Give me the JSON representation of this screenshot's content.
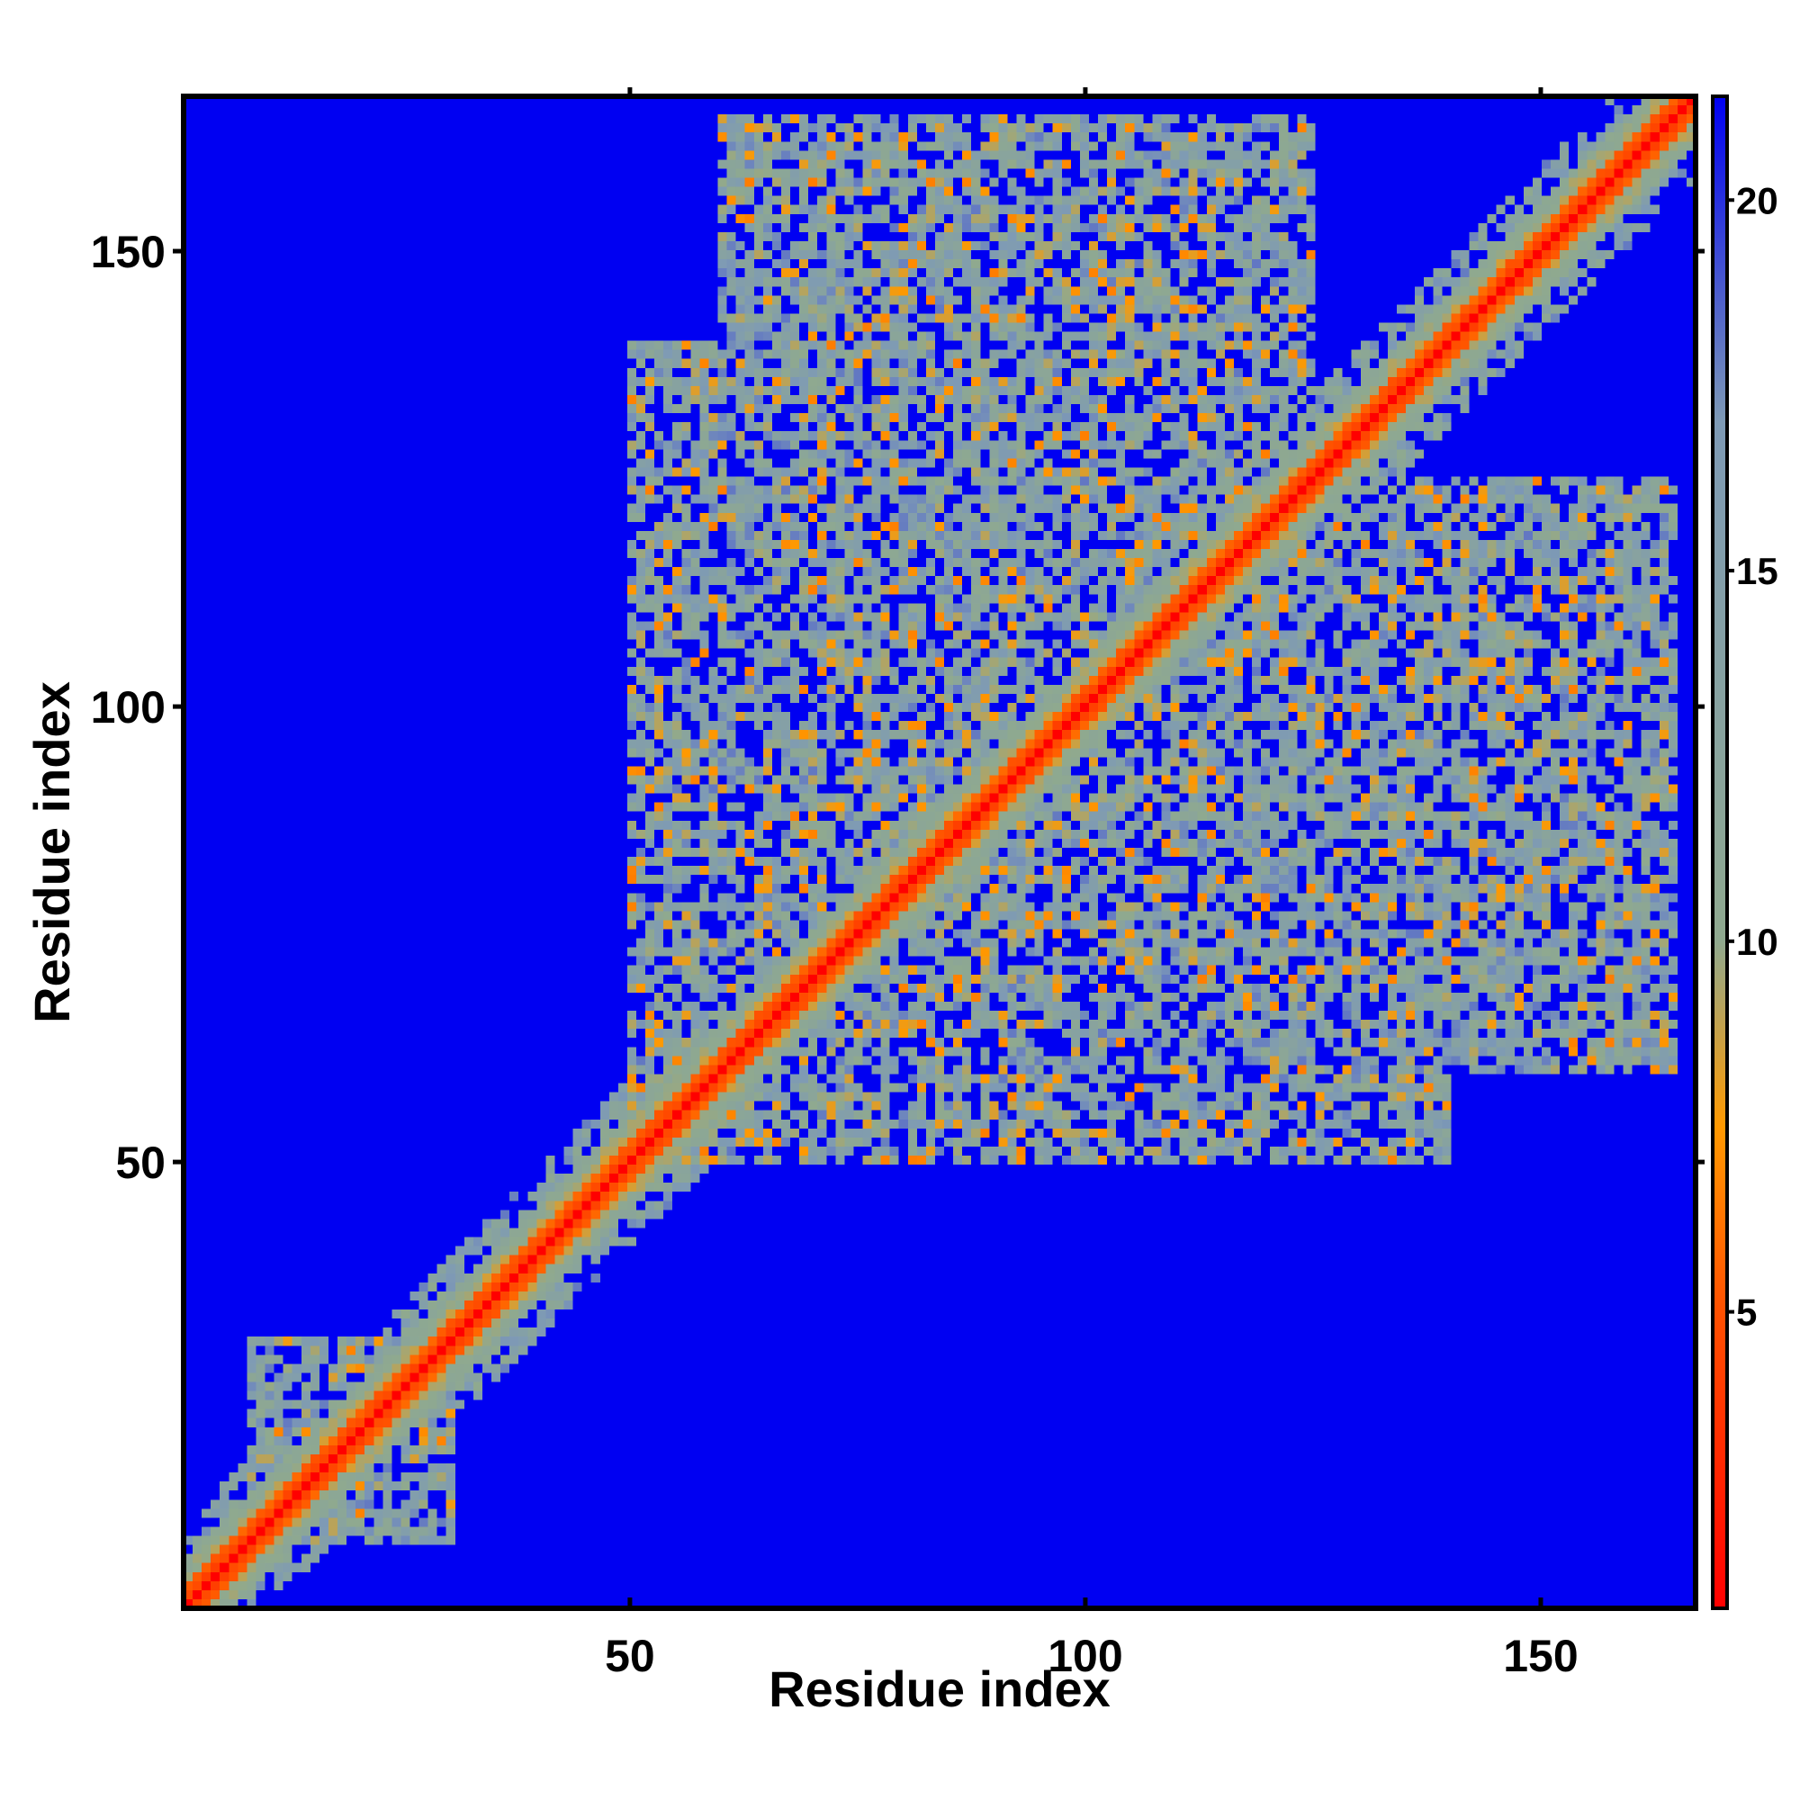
{
  "chart_data": {
    "type": "heatmap",
    "title": "",
    "xlabel": "Residue index",
    "ylabel": "Residue index",
    "xlim": [
      1,
      167
    ],
    "ylim": [
      1,
      167
    ],
    "x_ticks": [
      50,
      100,
      150
    ],
    "y_ticks": [
      50,
      100,
      150
    ],
    "colorbar": {
      "range": [
        1,
        21.4
      ],
      "ticks": [
        5,
        10,
        15,
        20
      ],
      "colors": [
        "#ff0000",
        "#ff5000",
        "#ff9900",
        "#8fa98f",
        "#7e9ab5",
        "#0000f2"
      ],
      "color_stops_values": [
        1,
        5,
        7.5,
        10,
        17,
        21.4
      ]
    },
    "description_values": {
      "matrix_size": 167,
      "diagonal_value": 1,
      "far_value": 21.4
    },
    "dense_regions": [
      {
        "x": [
          8,
          30
        ],
        "y": [
          8,
          30
        ]
      },
      {
        "x": [
          50,
          100
        ],
        "y": [
          50,
          100
        ]
      },
      {
        "x": [
          60,
          120
        ],
        "y": [
          100,
          165
        ]
      },
      {
        "x": [
          80,
          165
        ],
        "y": [
          80,
          125
        ]
      },
      {
        "x": [
          90,
          140
        ],
        "y": [
          50,
          100
        ]
      }
    ]
  }
}
